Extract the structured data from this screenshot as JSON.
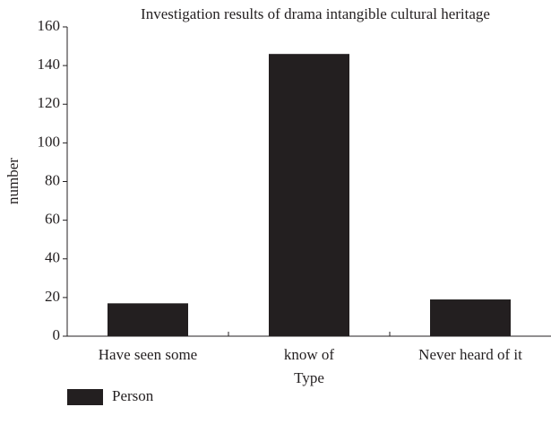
{
  "chart_data": {
    "type": "bar",
    "title": "Investigation results of drama intangible cultural heritage",
    "x_label": "Type",
    "y_label": "number",
    "categories": [
      "Have seen some",
      "know of",
      "Never heard of it"
    ],
    "series": [
      {
        "name": "Person",
        "color": "#231f20",
        "values": [
          17,
          146,
          19
        ]
      }
    ],
    "ylim": [
      0,
      160
    ],
    "yticks": [
      0,
      20,
      40,
      60,
      80,
      100,
      120,
      140,
      160
    ],
    "grid": false,
    "legend": "bottom-left"
  }
}
